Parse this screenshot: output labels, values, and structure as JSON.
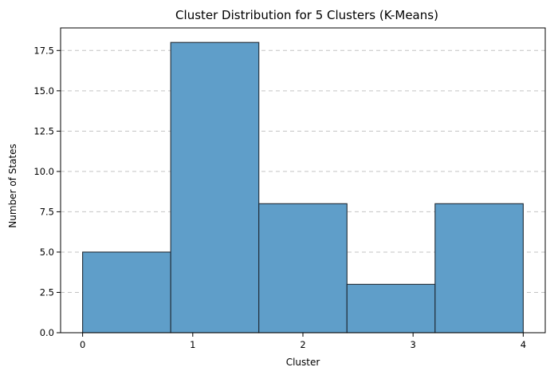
{
  "chart_data": {
    "type": "bar",
    "title": "Cluster Distribution for 5 Clusters (K-Means)",
    "xlabel": "Cluster",
    "ylabel": "Number of States",
    "bins": [
      {
        "start": 0.0,
        "end": 0.8,
        "value": 5
      },
      {
        "start": 0.8,
        "end": 1.6,
        "value": 18
      },
      {
        "start": 1.6,
        "end": 2.4,
        "value": 8
      },
      {
        "start": 2.4,
        "end": 3.2,
        "value": 3
      },
      {
        "start": 3.2,
        "end": 4.0,
        "value": 8
      }
    ],
    "xticks": [
      0,
      1,
      2,
      3,
      4
    ],
    "xtick_labels": [
      "0",
      "1",
      "2",
      "3",
      "4"
    ],
    "yticks": [
      0,
      2.5,
      5,
      7.5,
      10,
      12.5,
      15,
      17.5
    ],
    "ytick_labels": [
      "0.0",
      "2.5",
      "5.0",
      "7.5",
      "10.0",
      "12.5",
      "15.0",
      "17.5"
    ],
    "xlim": [
      -0.2,
      4.2
    ],
    "ylim": [
      0,
      18.9
    ],
    "grid": "y-axis dashed",
    "bar_color": "#5f9ec9",
    "bar_edge_color": "#1f2a35"
  }
}
